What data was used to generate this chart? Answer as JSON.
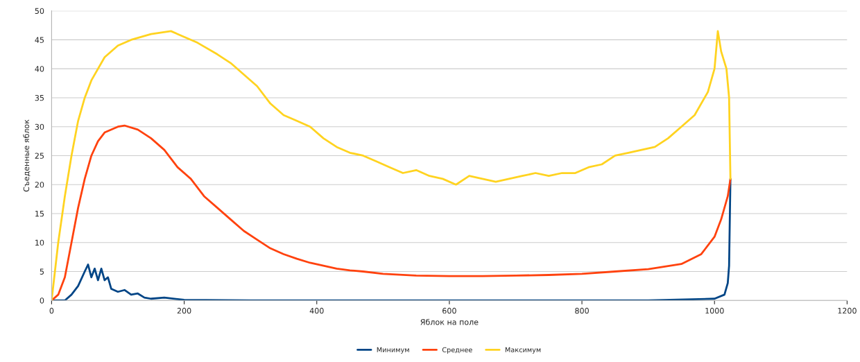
{
  "chart_data": {
    "type": "line",
    "xlabel": "Яблок на поле",
    "ylabel": "Съеденные яблок",
    "xlim": [
      0,
      1200
    ],
    "xticks": [
      0,
      200,
      400,
      600,
      800,
      1000,
      1200
    ],
    "ylim": [
      0,
      50
    ],
    "yticks": [
      0,
      5,
      10,
      15,
      20,
      25,
      30,
      35,
      40,
      45,
      50
    ],
    "grid": "y",
    "legend": "bottom",
    "marker": "none",
    "line_style": "solid",
    "series": [
      {
        "name": "Минимум",
        "color": "#004586",
        "x": [
          0,
          20,
          30,
          40,
          50,
          55,
          60,
          65,
          70,
          75,
          80,
          85,
          90,
          100,
          110,
          120,
          130,
          140,
          150,
          170,
          200,
          300,
          900,
          1000,
          1015,
          1020,
          1022,
          1024
        ],
        "values": [
          0,
          0,
          1,
          2.5,
          5,
          6.2,
          4,
          5.5,
          3.5,
          5.5,
          3.5,
          4,
          2,
          1.5,
          1.8,
          1,
          1.2,
          0.5,
          0.3,
          0.5,
          0.1,
          0,
          0,
          0.3,
          1,
          3,
          6,
          21
        ]
      },
      {
        "name": "Среднее",
        "color": "#ff420e",
        "x": [
          0,
          10,
          20,
          30,
          40,
          50,
          60,
          70,
          80,
          100,
          110,
          130,
          150,
          170,
          190,
          210,
          230,
          250,
          270,
          290,
          310,
          330,
          350,
          370,
          390,
          410,
          430,
          450,
          470,
          500,
          550,
          600,
          650,
          700,
          750,
          800,
          850,
          900,
          950,
          980,
          1000,
          1010,
          1020,
          1024
        ],
        "values": [
          0,
          1,
          4,
          10,
          16,
          21,
          25,
          27.5,
          29,
          30,
          30.2,
          29.5,
          28,
          26,
          23,
          21,
          18,
          16,
          14,
          12,
          10.5,
          9,
          8,
          7.2,
          6.5,
          6,
          5.5,
          5.2,
          5,
          4.6,
          4.3,
          4.2,
          4.2,
          4.3,
          4.4,
          4.6,
          5,
          5.4,
          6.3,
          8,
          11,
          14,
          18,
          21
        ]
      },
      {
        "name": "Максимум",
        "color": "#ffd320",
        "x": [
          0,
          10,
          20,
          30,
          40,
          50,
          60,
          80,
          100,
          120,
          150,
          180,
          200,
          220,
          250,
          270,
          290,
          310,
          330,
          350,
          370,
          390,
          410,
          430,
          450,
          470,
          490,
          510,
          530,
          550,
          570,
          590,
          610,
          630,
          650,
          670,
          690,
          710,
          730,
          750,
          770,
          790,
          810,
          830,
          850,
          870,
          890,
          910,
          930,
          950,
          970,
          990,
          1000,
          1005,
          1010,
          1018,
          1022,
          1024
        ],
        "values": [
          0,
          10,
          18,
          25,
          31,
          35,
          38,
          42,
          44,
          45,
          46,
          46.5,
          45.5,
          44.5,
          42.5,
          41,
          39,
          37,
          34,
          32,
          31,
          30,
          28,
          26.5,
          25.5,
          25,
          24,
          23,
          22,
          22.5,
          21.5,
          21,
          20,
          21.5,
          21,
          20.5,
          21,
          21.5,
          22,
          21.5,
          22,
          22,
          23,
          23.5,
          25,
          25.5,
          26,
          26.5,
          28,
          30,
          32,
          36,
          40,
          46.5,
          43,
          40,
          35,
          21
        ]
      }
    ]
  }
}
